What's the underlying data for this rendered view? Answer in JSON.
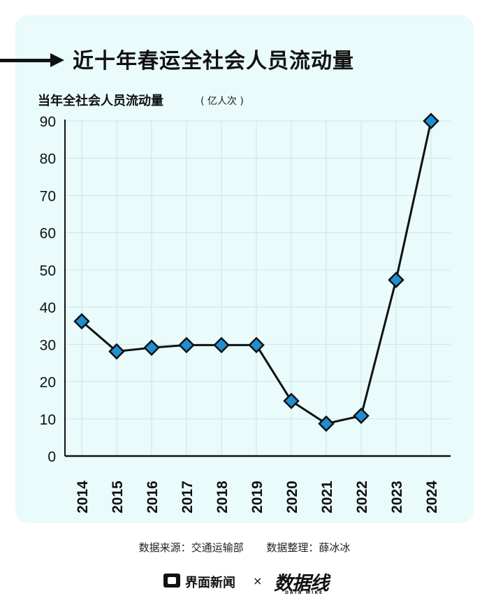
{
  "header": {
    "title": "近十年春运全社会人员流动量",
    "subtitle": "当年全社会人员流动量",
    "unit": "( 亿人次 )"
  },
  "chart_data": {
    "type": "line",
    "title": "近十年春运全社会人员流动量",
    "ylabel": "当年全社会人员流动量（亿人次）",
    "xlabel": "",
    "categories": [
      "2014",
      "2015",
      "2016",
      "2017",
      "2018",
      "2019",
      "2020",
      "2021",
      "2022",
      "2023",
      "2024"
    ],
    "series": [
      {
        "values": [
          36.2,
          28.1,
          29.1,
          29.8,
          29.8,
          29.8,
          14.8,
          8.7,
          10.8,
          47.3,
          90
        ]
      }
    ],
    "yticks": [
      "0",
      "10",
      "20",
      "30",
      "40",
      "50",
      "60",
      "70",
      "80",
      "90"
    ],
    "ylim": [
      0,
      90
    ],
    "grid": true,
    "line_color": "#111111",
    "marker": "diamond",
    "marker_color": "#1e8fd0",
    "background_color": "#e9fbfb"
  },
  "footer": {
    "source": "数据来源：交通运输部",
    "editor": "数据整理：薛冰冰",
    "brand_jm": "界面新闻",
    "times": "×",
    "brand_dw": "数据线",
    "brand_dw_sub": "DATA WIRE"
  },
  "icons": [
    "arrow-right-icon",
    "jiemian-logo-icon"
  ]
}
